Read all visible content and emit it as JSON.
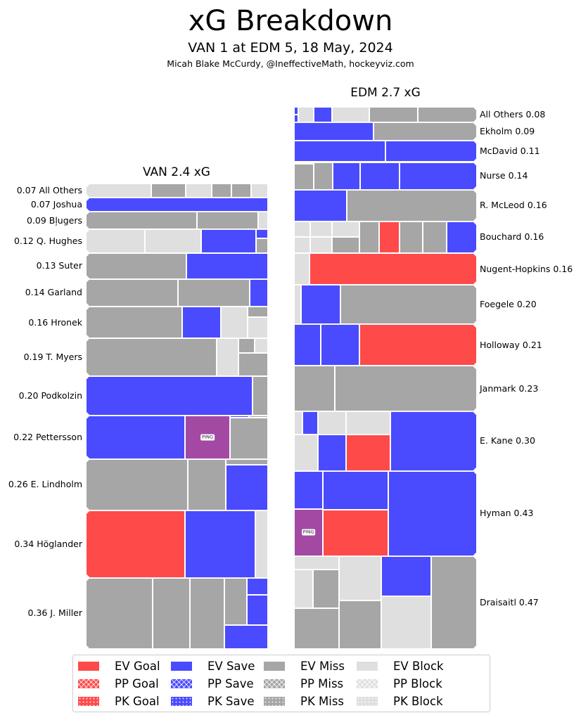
{
  "header": {
    "title": "xG Breakdown",
    "subtitle": "VAN 1 at EDM 5, 18 May, 2024",
    "credit": "Micah Blake McCurdy, @IneffectiveMath, hockeyviz.com"
  },
  "colors": {
    "ev_goal": "#ff4a4a",
    "ev_save": "#4a4aff",
    "ev_miss": "#a6a6a6",
    "ev_block": "#dfdfdf",
    "ping": "#a349a4"
  },
  "ping_label": "PING",
  "chart_data": {
    "type": "treemap",
    "value_unit": "xG",
    "teams": [
      {
        "team": "VAN",
        "title": "VAN 2.4 xG",
        "side": "left",
        "players": [
          {
            "name": "All Others",
            "xg": "0.07",
            "shots": [
              {
                "t": "ev_block",
                "xg": 0.025
              },
              {
                "t": "ev_miss",
                "xg": 0.013
              },
              {
                "t": "ev_block",
                "xg": 0.01
              },
              {
                "t": "ev_miss",
                "xg": 0.0075
              },
              {
                "t": "ev_miss",
                "xg": 0.0075
              },
              {
                "t": "ev_block",
                "xg": 0.0065
              }
            ]
          },
          {
            "name": "Joshua",
            "xg": "0.07",
            "shots": [
              {
                "t": "ev_save",
                "xg": 0.07
              }
            ]
          },
          {
            "name": "Bļugers",
            "xg": "0.09",
            "shots": [
              {
                "t": "ev_miss",
                "xg": 0.055
              },
              {
                "t": "ev_miss",
                "xg": 0.03
              },
              {
                "t": "ev_block",
                "xg": 0.005
              }
            ]
          },
          {
            "name": "Q. Hughes",
            "xg": "0.12",
            "shots": [
              {
                "t": "ev_block",
                "xg": 0.039
              },
              {
                "t": "ev_block",
                "xg": 0.037
              },
              {
                "t": "ev_save",
                "xg": 0.036
              },
              {
                "stack": [
                  {
                    "t": "ev_save",
                    "xg": 0.003
                  },
                  {
                    "t": "ev_miss",
                    "xg": 0.005
                  }
                ]
              }
            ]
          },
          {
            "name": "Suter",
            "xg": "0.13",
            "shots": [
              {
                "t": "ev_miss",
                "xg": 0.072
              },
              {
                "t": "ev_save",
                "xg": 0.058
              }
            ]
          },
          {
            "name": "Garland",
            "xg": "0.14",
            "shots": [
              {
                "t": "ev_miss",
                "xg": 0.071
              },
              {
                "t": "ev_miss",
                "xg": 0.055
              },
              {
                "t": "ev_save",
                "xg": 0.014
              }
            ]
          },
          {
            "name": "Hronek",
            "xg": "0.16",
            "shots": [
              {
                "t": "ev_miss",
                "xg": 0.084
              },
              {
                "t": "ev_save",
                "xg": 0.034
              },
              {
                "t": "ev_block",
                "xg": 0.023
              },
              {
                "stack": [
                  {
                    "t": "ev_miss",
                    "xg": 0.006
                  },
                  {
                    "t": "ev_block",
                    "xg": 0.012
                  }
                ]
              }
            ]
          },
          {
            "name": "T. Myers",
            "xg": "0.19",
            "shots": [
              {
                "t": "ev_miss",
                "xg": 0.137
              },
              {
                "t": "ev_block",
                "xg": 0.023
              },
              {
                "stack": [
                  {
                    "row": [
                      {
                        "t": "ev_miss",
                        "xg": 0.0065
                      },
                      {
                        "t": "ev_block",
                        "xg": 0.0055
                      }
                    ]
                  },
                  {
                    "t": "ev_miss",
                    "xg": 0.019
                  }
                ]
              }
            ]
          },
          {
            "name": "Podkolzin",
            "xg": "0.20",
            "shots": [
              {
                "t": "ev_save",
                "xg": 0.183
              },
              {
                "t": "ev_miss",
                "xg": 0.017
              }
            ]
          },
          {
            "name": "Pettersson",
            "xg": "0.22",
            "shots": [
              {
                "t": "ev_save",
                "xg": 0.12
              },
              {
                "t": "ping",
                "xg": 0.054
              },
              {
                "stack": [
                  {
                    "row": [
                      {
                        "t": "ev_save",
                        "xg": 0.001
                      },
                      {
                        "t": "ev_miss",
                        "xg": 0.001
                      }
                    ]
                  },
                  {
                    "t": "ev_miss",
                    "xg": 0.044
                  }
                ]
              }
            ]
          },
          {
            "name": "E. Lindholm",
            "xg": "0.26",
            "shots": [
              {
                "t": "ev_miss",
                "xg": 0.146
              },
              {
                "t": "ev_miss",
                "xg": 0.054
              },
              {
                "stack": [
                  {
                    "t": "ev_miss",
                    "xg": 0.007
                  },
                  {
                    "t": "ev_save",
                    "xg": 0.053
                  }
                ]
              }
            ]
          },
          {
            "name": "Höglander",
            "xg": "0.34",
            "shots": [
              {
                "t": "ev_goal",
                "xg": 0.185
              },
              {
                "t": "ev_save",
                "xg": 0.131
              },
              {
                "t": "ev_block",
                "xg": 0.024
              }
            ]
          },
          {
            "name": "J. Miller",
            "xg": "0.36",
            "shots": [
              {
                "t": "ev_miss",
                "xg": 0.132
              },
              {
                "t": "ev_miss",
                "xg": 0.074
              },
              {
                "t": "ev_miss",
                "xg": 0.068
              },
              {
                "stack": [
                  {
                    "row": [
                      {
                        "t": "ev_miss",
                        "xg": 0.029
                      },
                      {
                        "stack": [
                          {
                            "t": "ev_save",
                            "xg": 0.01
                          },
                          {
                            "t": "ev_save",
                            "xg": 0.018
                          }
                        ]
                      }
                    ]
                  },
                  {
                    "t": "ev_save",
                    "xg": 0.029
                  }
                ]
              }
            ]
          }
        ]
      },
      {
        "team": "EDM",
        "title": "EDM 2.7 xG",
        "side": "right",
        "players": [
          {
            "name": "All Others",
            "xg": "0.08",
            "shots": [
              {
                "stack": [
                  {
                    "t": "ev_save",
                    "xg": 0.001
                  },
                  {
                    "t": "ev_save",
                    "xg": 0.001
                  }
                ]
              },
              {
                "t": "ev_block",
                "xg": 0.0065
              },
              {
                "t": "ev_save",
                "xg": 0.008
              },
              {
                "t": "ev_block",
                "xg": 0.0166
              },
              {
                "t": "ev_miss",
                "xg": 0.021
              },
              {
                "t": "ev_miss",
                "xg": 0.026
              }
            ]
          },
          {
            "name": "Ekholm",
            "xg": "0.09",
            "shots": [
              {
                "t": "ev_save",
                "xg": 0.039
              },
              {
                "t": "ev_miss",
                "xg": 0.051
              }
            ]
          },
          {
            "name": "McDavid",
            "xg": "0.11",
            "shots": [
              {
                "t": "ev_save",
                "xg": 0.055
              },
              {
                "t": "ev_save",
                "xg": 0.055
              }
            ]
          },
          {
            "name": "Nurse",
            "xg": "0.14",
            "shots": [
              {
                "stack": [
                  {
                    "t": "ev_save",
                    "xg": 0.001
                  },
                  {
                    "t": "ev_miss",
                    "xg": 0.014
                  }
                ]
              },
              {
                "t": "ev_miss",
                "xg": 0.0145
              },
              {
                "t": "ev_save",
                "xg": 0.021
              },
              {
                "t": "ev_save",
                "xg": 0.03
              },
              {
                "t": "ev_save",
                "xg": 0.059
              }
            ]
          },
          {
            "name": "R. McLeod",
            "xg": "0.16",
            "shots": [
              {
                "t": "ev_save",
                "xg": 0.046
              },
              {
                "t": "ev_miss",
                "xg": 0.114
              }
            ]
          },
          {
            "name": "Bouchard",
            "xg": "0.16",
            "shots": [
              {
                "stack": [
                  {
                    "t": "ev_block",
                    "xg": 0.007
                  },
                  {
                    "t": "ev_block",
                    "xg": 0.007
                  }
                ]
              },
              {
                "stack": [
                  {
                    "t": "ev_block",
                    "xg": 0.0095
                  },
                  {
                    "t": "ev_block",
                    "xg": 0.0095
                  }
                ]
              },
              {
                "stack": [
                  {
                    "t": "ev_block",
                    "xg": 0.012
                  },
                  {
                    "t": "ev_miss",
                    "xg": 0.012
                  }
                ]
              },
              {
                "t": "ev_miss",
                "xg": 0.017
              },
              {
                "t": "ev_goal",
                "xg": 0.018
              },
              {
                "t": "ev_miss",
                "xg": 0.02
              },
              {
                "t": "ev_miss",
                "xg": 0.021
              },
              {
                "t": "ev_save",
                "xg": 0.026
              }
            ]
          },
          {
            "name": "Nugent-Hopkins",
            "xg": "0.16",
            "shots": [
              {
                "t": "ev_block",
                "xg": 0.0135
              },
              {
                "t": "ev_goal",
                "xg": 0.1465
              }
            ]
          },
          {
            "name": "Foegele",
            "xg": "0.20",
            "shots": [
              {
                "t": "ev_block",
                "xg": 0.008
              },
              {
                "t": "ev_save",
                "xg": 0.043
              },
              {
                "t": "ev_miss",
                "xg": 0.149
              }
            ]
          },
          {
            "name": "Holloway",
            "xg": "0.21",
            "shots": [
              {
                "t": "ev_save",
                "xg": 0.031
              },
              {
                "t": "ev_save",
                "xg": 0.044
              },
              {
                "t": "ev_goal",
                "xg": 0.135
              }
            ]
          },
          {
            "name": "Janmark",
            "xg": "0.23",
            "shots": [
              {
                "t": "ev_miss",
                "xg": 0.051
              },
              {
                "t": "ev_miss",
                "xg": 0.179
              }
            ]
          },
          {
            "name": "E. Kane",
            "xg": "0.30",
            "shots": [
              {
                "stack": [
                  {
                    "row": [
                      {
                        "t": "ev_block",
                        "xg": 0.0054
                      },
                      {
                        "t": "ev_save",
                        "xg": 0.01
                      },
                      {
                        "t": "ev_block",
                        "xg": 0.018
                      },
                      {
                        "t": "ev_block",
                        "xg": 0.0286
                      }
                    ]
                  },
                  {
                    "row": [
                      {
                        "t": "ev_block",
                        "xg": 0.0238
                      },
                      {
                        "t": "ev_save",
                        "xg": 0.028
                      },
                      {
                        "t": "ev_goal",
                        "xg": 0.0441
                      }
                    ]
                  }
                ]
              },
              {
                "t": "ev_save",
                "xg": 0.142
              }
            ]
          },
          {
            "name": "Hyman",
            "xg": "0.43",
            "shots": [
              {
                "stack": [
                  {
                    "t": "ev_save",
                    "xg": 0.0303
                  },
                  {
                    "t": "ping",
                    "xg": 0.0375
                  }
                ]
              },
              {
                "stack": [
                  {
                    "t": "ev_save",
                    "xg": 0.07
                  },
                  {
                    "t": "ev_goal",
                    "xg": 0.084
                  }
                ]
              },
              {
                "t": "ev_save",
                "xg": 0.208
              }
            ]
          },
          {
            "name": "Draisaitl",
            "xg": "0.47",
            "shots": [
              {
                "stack": [
                  {
                    "t": "ev_block",
                    "xg": 0.0168
                  },
                  {
                    "row": [
                      {
                        "t": "ev_block",
                        "xg": 0.0205
                      },
                      {
                        "t": "ev_miss",
                        "xg": 0.028
                      }
                    ]
                  },
                  {
                    "t": "ev_miss",
                    "xg": 0.0503
                  }
                ]
              },
              {
                "stack": [
                  {
                    "t": "ev_block",
                    "xg": 0.052
                  },
                  {
                    "t": "ev_miss",
                    "xg": 0.056
                  }
                ]
              },
              {
                "stack": [
                  {
                    "t": "ev_save",
                    "xg": 0.056
                  },
                  {
                    "t": "ev_block",
                    "xg": 0.0725
                  }
                ]
              },
              {
                "t": "ev_miss",
                "xg": 0.1175
              }
            ]
          }
        ]
      }
    ]
  },
  "legend": {
    "placement": "bottom",
    "items": [
      {
        "label": "EV Goal",
        "color": "#ff4a4a",
        "pattern": "solid"
      },
      {
        "label": "PP Goal",
        "color": "#ff4a4a",
        "pattern": "cross"
      },
      {
        "label": "PK Goal",
        "color": "#ff4a4a",
        "pattern": "dots"
      },
      {
        "label": "EV Save",
        "color": "#4a4aff",
        "pattern": "solid"
      },
      {
        "label": "PP Save",
        "color": "#4a4aff",
        "pattern": "cross"
      },
      {
        "label": "PK Save",
        "color": "#4a4aff",
        "pattern": "dots"
      },
      {
        "label": "EV Miss",
        "color": "#a6a6a6",
        "pattern": "solid"
      },
      {
        "label": "PP Miss",
        "color": "#a6a6a6",
        "pattern": "cross"
      },
      {
        "label": "PK Miss",
        "color": "#a6a6a6",
        "pattern": "dots"
      },
      {
        "label": "EV Block",
        "color": "#dfdfdf",
        "pattern": "solid"
      },
      {
        "label": "PP Block",
        "color": "#dfdfdf",
        "pattern": "cross"
      },
      {
        "label": "PK Block",
        "color": "#dfdfdf",
        "pattern": "dots"
      }
    ]
  }
}
